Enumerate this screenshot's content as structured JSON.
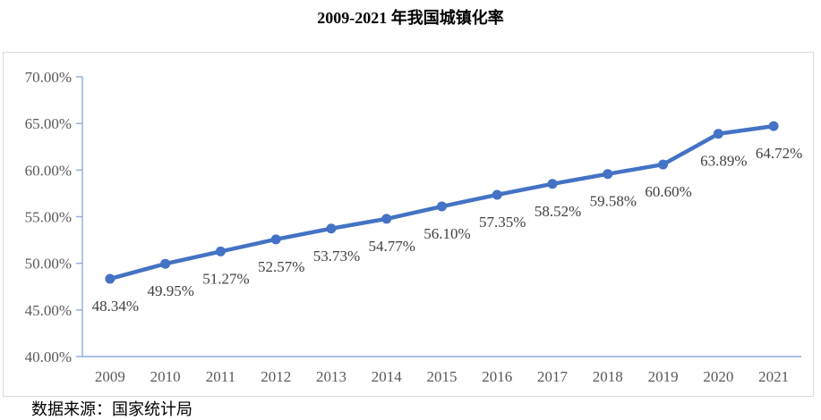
{
  "title": "2009-2021 年我国城镇化率",
  "source_note": "数据来源：国家统计局",
  "chart_data": {
    "type": "line",
    "title": "2009-2021 年我国城镇化率",
    "categories": [
      "2009",
      "2010",
      "2011",
      "2012",
      "2013",
      "2014",
      "2015",
      "2016",
      "2017",
      "2018",
      "2019",
      "2020",
      "2021"
    ],
    "values": [
      48.34,
      49.95,
      51.27,
      52.57,
      53.73,
      54.77,
      56.1,
      57.35,
      58.52,
      59.58,
      60.6,
      63.89,
      64.72
    ],
    "point_labels": [
      "48.34%",
      "49.95%",
      "51.27%",
      "52.57%",
      "53.73%",
      "54.77%",
      "56.10%",
      "57.35%",
      "58.52%",
      "59.58%",
      "60.60%",
      "63.89%",
      "64.72%"
    ],
    "xlabel": "",
    "ylabel": "",
    "ylim": [
      40,
      70
    ],
    "ytick_values": [
      70,
      65,
      60,
      55,
      50,
      45,
      40
    ],
    "yticks": [
      "70.00%",
      "65.00%",
      "60.00%",
      "55.00%",
      "50.00%",
      "45.00%",
      "40.00%"
    ],
    "grid": false,
    "legend": "none",
    "colors": {
      "line": "#4472C4",
      "marker": "#4472C4",
      "axis": "#8EA9DB",
      "tick_label": "#595959",
      "data_label": "#404040",
      "chart_border": "#D9D9D9"
    }
  }
}
